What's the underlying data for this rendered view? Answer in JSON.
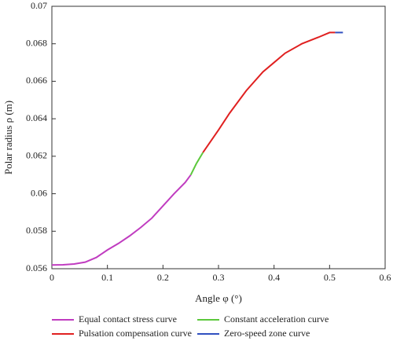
{
  "chart_data": {
    "type": "line",
    "xlabel": "Angle φ (°)",
    "ylabel": "Polar radius ρ (m)",
    "xlim": [
      0,
      0.6
    ],
    "xticks": [
      0,
      0.1,
      0.2,
      0.3,
      0.4,
      0.5,
      0.6
    ],
    "ylim": [
      0.056,
      0.07
    ],
    "yticks": [
      0.056,
      0.058,
      0.06,
      0.062,
      0.064,
      0.066,
      0.068,
      0.07
    ],
    "series": [
      {
        "name": "Equal contact stress curve",
        "color": "#c03cc0",
        "x": [
          0,
          0.02,
          0.04,
          0.06,
          0.08,
          0.1,
          0.12,
          0.14,
          0.16,
          0.18,
          0.2,
          0.22,
          0.24,
          0.25
        ],
        "values": [
          0.0562,
          0.05621,
          0.05625,
          0.05635,
          0.0566,
          0.057,
          0.05735,
          0.05775,
          0.0582,
          0.0587,
          0.05935,
          0.06,
          0.0606,
          0.061
        ]
      },
      {
        "name": "Constant acceleration curve",
        "color": "#5cc83c",
        "x": [
          0.25,
          0.26,
          0.272
        ],
        "values": [
          0.061,
          0.0616,
          0.0622
        ]
      },
      {
        "name": "Pulsation compensation curve",
        "color": "#e02020",
        "x": [
          0.272,
          0.3,
          0.32,
          0.35,
          0.38,
          0.4,
          0.42,
          0.45,
          0.48,
          0.5,
          0.51
        ],
        "values": [
          0.0622,
          0.0634,
          0.0643,
          0.0655,
          0.0665,
          0.067,
          0.0675,
          0.068,
          0.06835,
          0.0686,
          0.0686
        ]
      },
      {
        "name": "Zero-speed zone curve",
        "color": "#3050c0",
        "x": [
          0.51,
          0.524
        ],
        "values": [
          0.0686,
          0.0686
        ]
      }
    ]
  }
}
